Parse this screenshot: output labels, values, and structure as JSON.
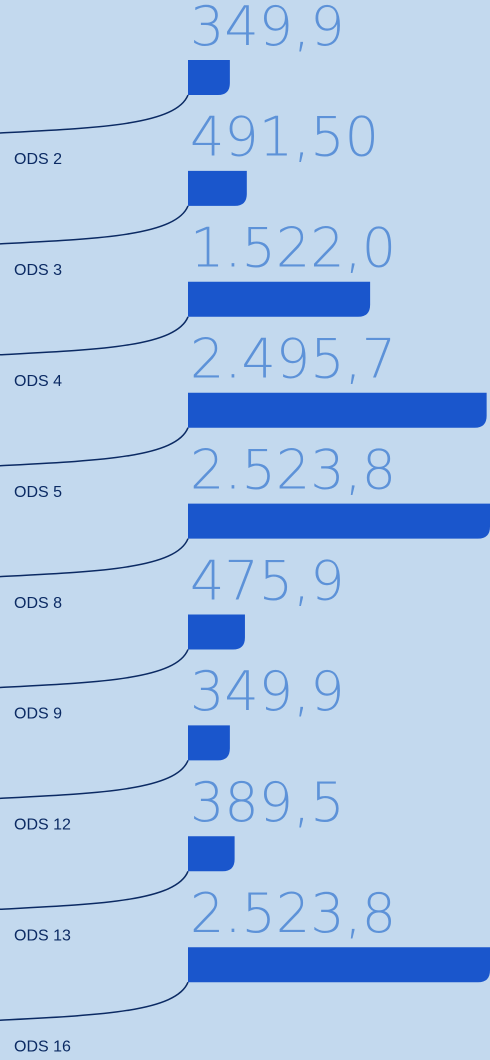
{
  "chart_data": {
    "type": "bar",
    "categories": [
      "ODS 2",
      "ODS 3",
      "ODS 4",
      "ODS 5",
      "ODS 8",
      "ODS 9",
      "ODS 12",
      "ODS 13",
      "ODS 16"
    ],
    "values": [
      349.9,
      491.5,
      1522.0,
      2495.7,
      2523.8,
      475.9,
      349.9,
      389.5,
      2523.8
    ],
    "value_labels": [
      "349,9",
      "491,50",
      "1.522,0",
      "2.495,7",
      "2.523,8",
      "475,9",
      "349,9",
      "389,5",
      "2.523,8"
    ],
    "color": "#1a56cc"
  }
}
